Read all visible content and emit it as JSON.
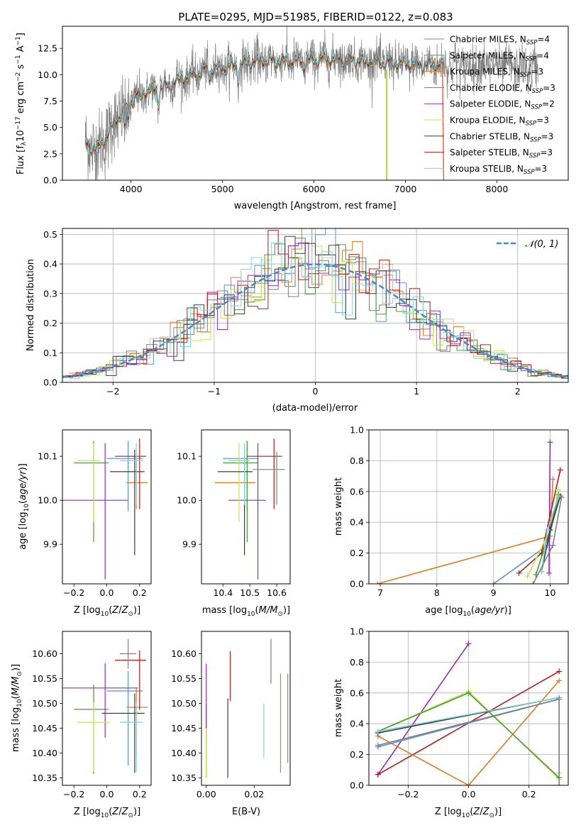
{
  "colors": {
    "Chabrier MILES": "#5b8fd9",
    "Salpeter MILES": "#7f7f7f",
    "Kroupa MILES": "#e07b22",
    "Chabrier ELODIE": "#4b9a3c",
    "Salpeter ELODIE": "#9b28b8",
    "Kroupa ELODIE": "#c9e34c",
    "Chabrier STELIB": "#3a3a3a",
    "Salpeter STELIB": "#b01c1c",
    "Kroupa STELIB": "#7fd6d6"
  },
  "chart_data": [
    {
      "id": "spectrum",
      "type": "line",
      "title": "PLATE=0295, MJD=51985, FIBERID=0122, z=0.083",
      "xlabel": "wavelength [Angstrom, rest frame]",
      "ylabel": "Flux [f",
      "ylabel_full": "Flux [f_λ10^-17 erg cm^-2 s^-1 A^-1]",
      "xlim": [
        3250,
        8780
      ],
      "ylim": [
        0,
        14.6
      ],
      "xticks": [
        4000,
        5000,
        6000,
        7000,
        8000
      ],
      "yticks": [
        0.0,
        2.5,
        5.0,
        7.5,
        10.0,
        12.5
      ],
      "legend": [
        {
          "label": "Chabrier MILES, N_SSP=4",
          "base": "Chabrier MILES, N",
          "n": "4"
        },
        {
          "label": "Salpeter MILES, N_SSP=4",
          "base": "Salpeter MILES, N",
          "n": "4"
        },
        {
          "label": "Kroupa MILES, N_SSP=3",
          "base": "Kroupa MILES, N",
          "n": "3"
        },
        {
          "label": "Chabrier ELODIE, N_SSP=3",
          "base": "Chabrier ELODIE, N",
          "n": "3"
        },
        {
          "label": "Salpeter ELODIE, N_SSP=2",
          "base": "Salpeter ELODIE, N",
          "n": "2"
        },
        {
          "label": "Kroupa ELODIE, N_SSP=3",
          "base": "Kroupa ELODIE, N",
          "n": "3"
        },
        {
          "label": "Chabrier STELIB, N_SSP=3",
          "base": "Chabrier STELIB, N",
          "n": "3"
        },
        {
          "label": "Salpeter STELIB, N_SSP=3",
          "base": "Salpeter STELIB, N",
          "n": "3"
        },
        {
          "label": "Kroupa STELIB, N_SSP=3",
          "base": "Kroupa STELIB, N",
          "n": "3"
        }
      ],
      "model_wavelength_range": [
        3500,
        7420
      ],
      "data_wavelength_range": [
        3500,
        8450
      ],
      "continuum": [
        [
          3500,
          3.3
        ],
        [
          3650,
          3.0
        ],
        [
          3800,
          5.2
        ],
        [
          3950,
          7.0
        ],
        [
          4100,
          8.3
        ],
        [
          4300,
          8.6
        ],
        [
          4500,
          9.4
        ],
        [
          4800,
          10.4
        ],
        [
          5100,
          10.8
        ],
        [
          5400,
          11.3
        ],
        [
          5800,
          11.3
        ],
        [
          6200,
          11.5
        ],
        [
          6600,
          11.3
        ],
        [
          7000,
          11.0
        ],
        [
          7400,
          10.9
        ],
        [
          7800,
          10.9
        ],
        [
          8200,
          10.7
        ],
        [
          8450,
          10.6
        ]
      ]
    },
    {
      "id": "residuals",
      "type": "histogram",
      "xlabel": "(data-model)/error",
      "ylabel": "Normed distribution",
      "xlim": [
        -2.5,
        2.5
      ],
      "ylim": [
        0,
        0.52
      ],
      "xticks": [
        -2,
        -1,
        0,
        1,
        2
      ],
      "yticks": [
        0.0,
        0.1,
        0.2,
        0.3,
        0.4,
        0.5
      ],
      "legend": "𝒩(0, 1)",
      "grid": true
    },
    {
      "id": "z-age",
      "type": "errorbar",
      "xlabel": "Z [log",
      "ylabel": "age  [log",
      "xlim": [
        -0.27,
        0.27
      ],
      "ylim": [
        9.81,
        10.16
      ],
      "xticks": [
        -0.2,
        0.0,
        0.2
      ],
      "yticks": [
        9.9,
        10.0,
        10.1
      ],
      "points": [
        {
          "model": "Chabrier MILES",
          "x": 0.13,
          "y": 10.095,
          "xerr": [
            0.13,
            0.09
          ],
          "yerr": [
            0.12,
            0.04
          ]
        },
        {
          "model": "Kroupa MILES",
          "x": 0.18,
          "y": 10.04,
          "xerr": [
            0.06,
            0.07
          ],
          "yerr": [
            0.06,
            0.05
          ]
        },
        {
          "model": "Chabrier ELODIE",
          "x": -0.08,
          "y": 10.085,
          "xerr": [
            0.12,
            0.09
          ],
          "yerr": [
            0.18,
            0.05
          ]
        },
        {
          "model": "Salpeter ELODIE",
          "x": -0.01,
          "y": 10.0,
          "xerr": [
            0.26,
            0.14
          ],
          "yerr": [
            0.18,
            0.13
          ]
        },
        {
          "model": "Kroupa ELODIE",
          "x": -0.08,
          "y": 10.09,
          "xerr": [
            0.1,
            0.04
          ],
          "yerr": [
            0.14,
            0.04
          ]
        },
        {
          "model": "Chabrier STELIB",
          "x": 0.17,
          "y": 10.065,
          "xerr": [
            0.15,
            0.06
          ],
          "yerr": [
            0.19,
            0.05
          ]
        },
        {
          "model": "Salpeter STELIB",
          "x": 0.2,
          "y": 10.1,
          "xerr": [
            0.15,
            0.04
          ],
          "yerr": [
            0.12,
            0.04
          ]
        },
        {
          "model": "Kroupa STELIB",
          "x": 0.18,
          "y": 10.09,
          "xerr": [
            0.1,
            0.04
          ],
          "yerr": [
            0.1,
            0.04
          ]
        }
      ]
    },
    {
      "id": "mass-age",
      "type": "errorbar",
      "xlabel": "mass [log",
      "xlim": [
        10.32,
        10.65
      ],
      "ylim": [
        9.81,
        10.16
      ],
      "xticks": [
        10.4,
        10.5,
        10.6
      ],
      "yticks": [
        9.9,
        10.0,
        10.1
      ],
      "points": [
        {
          "model": "Chabrier MILES",
          "x": 10.49,
          "y": 10.095,
          "xerr": [
            0.09,
            0.04
          ],
          "yerr": [
            0.12,
            0.04
          ]
        },
        {
          "model": "Kroupa MILES",
          "x": 10.48,
          "y": 10.04,
          "xerr": [
            0.11,
            0.04
          ],
          "yerr": [
            0.06,
            0.05
          ]
        },
        {
          "model": "Chabrier ELODIE",
          "x": 10.49,
          "y": 10.085,
          "xerr": [
            0.09,
            0.04
          ],
          "yerr": [
            0.18,
            0.05
          ]
        },
        {
          "model": "Salpeter ELODIE",
          "x": 10.53,
          "y": 10.0,
          "xerr": [
            0.11,
            0.03
          ],
          "yerr": [
            0.18,
            0.13
          ]
        },
        {
          "model": "Kroupa ELODIE",
          "x": 10.46,
          "y": 10.09,
          "xerr": [
            0.03,
            0.03
          ],
          "yerr": [
            0.14,
            0.04
          ]
        },
        {
          "model": "Chabrier STELIB",
          "x": 10.48,
          "y": 10.065,
          "xerr": [
            0.1,
            0.03
          ],
          "yerr": [
            0.19,
            0.05
          ]
        },
        {
          "model": "Salpeter STELIB",
          "x": 10.59,
          "y": 10.1,
          "xerr": [
            0.1,
            0.03
          ],
          "yerr": [
            0.12,
            0.04
          ]
        },
        {
          "model": "Kroupa STELIB",
          "x": 10.48,
          "y": 10.09,
          "xerr": [
            0.06,
            0.02
          ],
          "yerr": [
            0.1,
            0.04
          ]
        },
        {
          "model": "Salpeter MILES",
          "x": 10.6,
          "y": 10.07,
          "xerr": [
            0.09,
            0.03
          ],
          "yerr": [
            0.08,
            0.04
          ]
        }
      ]
    },
    {
      "id": "age-weight",
      "type": "line",
      "xlabel": "age  [log",
      "ylabel": "mass weight",
      "xlim": [
        6.8,
        10.32
      ],
      "ylim": [
        0,
        1.0
      ],
      "xticks": [
        7,
        8,
        9,
        10
      ],
      "yticks": [
        0.0,
        0.2,
        0.4,
        0.6,
        0.8,
        1.0
      ],
      "grid": true,
      "series": [
        {
          "model": "Kroupa MILES",
          "points": [
            [
              6.95,
              0.0
            ],
            [
              10.0,
              0.31
            ],
            [
              10.05,
              0.68
            ]
          ]
        },
        {
          "model": "Chabrier MILES",
          "points": [
            [
              9.0,
              0.0
            ],
            [
              9.95,
              0.25
            ],
            [
              10.15,
              0.56
            ]
          ]
        },
        {
          "model": "Salpeter ELODIE",
          "points": [
            [
              9.98,
              0.07
            ],
            [
              10.0,
              0.92
            ]
          ]
        },
        {
          "model": "Salpeter STELIB",
          "points": [
            [
              9.45,
              0.07
            ],
            [
              9.85,
              0.2
            ],
            [
              10.18,
              0.74
            ]
          ]
        },
        {
          "model": "Kroupa ELODIE",
          "points": [
            [
              9.6,
              0.05
            ],
            [
              10.0,
              0.35
            ],
            [
              10.15,
              0.61
            ]
          ]
        },
        {
          "model": "Chabrier ELODIE",
          "points": [
            [
              9.75,
              0.06
            ],
            [
              10.0,
              0.35
            ],
            [
              10.15,
              0.58
            ]
          ]
        },
        {
          "model": "Chabrier STELIB",
          "points": [
            [
              9.85,
              0.08
            ],
            [
              10.0,
              0.35
            ],
            [
              10.18,
              0.57
            ]
          ]
        },
        {
          "model": "Kroupa STELIB",
          "points": [
            [
              9.85,
              0.08
            ],
            [
              9.95,
              0.35
            ],
            [
              10.15,
              0.57
            ]
          ]
        },
        {
          "model": "Salpeter MILES",
          "points": [
            [
              9.7,
              0.0
            ],
            [
              10.05,
              0.25
            ],
            [
              10.2,
              0.56
            ]
          ]
        }
      ]
    },
    {
      "id": "z-mass",
      "type": "errorbar",
      "xlabel": "Z [log",
      "ylabel": "mass [log",
      "xlim": [
        -0.27,
        0.27
      ],
      "ylim": [
        10.335,
        10.645
      ],
      "xticks": [
        -0.2,
        0.0,
        0.2
      ],
      "yticks": [
        10.35,
        10.4,
        10.45,
        10.5,
        10.55,
        10.6
      ],
      "points": [
        {
          "model": "Chabrier MILES",
          "x": 0.13,
          "y": 10.525,
          "xerr": [
            0.13,
            0.09
          ],
          "yerr": [
            0.15,
            0.04
          ]
        },
        {
          "model": "Kroupa MILES",
          "x": 0.18,
          "y": 10.492,
          "xerr": [
            0.06,
            0.07
          ],
          "yerr": [
            0.1,
            0.04
          ]
        },
        {
          "model": "Chabrier ELODIE",
          "x": -0.08,
          "y": 10.488,
          "xerr": [
            0.12,
            0.09
          ],
          "yerr": [
            0.13,
            0.05
          ]
        },
        {
          "model": "Salpeter ELODIE",
          "x": -0.01,
          "y": 10.531,
          "xerr": [
            0.26,
            0.2
          ],
          "yerr": [
            0.1,
            0.05
          ]
        },
        {
          "model": "Kroupa ELODIE",
          "x": -0.08,
          "y": 10.462,
          "xerr": [
            0.1,
            0.1
          ],
          "yerr": [
            0.1,
            0.04
          ]
        },
        {
          "model": "Chabrier STELIB",
          "x": 0.17,
          "y": 10.48,
          "xerr": [
            0.2,
            0.06
          ],
          "yerr": [
            0.12,
            0.04
          ]
        },
        {
          "model": "Salpeter STELIB",
          "x": 0.2,
          "y": 10.587,
          "xerr": [
            0.15,
            0.04
          ],
          "yerr": [
            0.1,
            0.02
          ]
        },
        {
          "model": "Kroupa STELIB",
          "x": 0.18,
          "y": 10.462,
          "xerr": [
            0.1,
            0.04
          ],
          "yerr": [
            0.1,
            0.04
          ]
        },
        {
          "model": "Salpeter MILES",
          "x": 0.13,
          "y": 10.6,
          "xerr": [
            0.05,
            0.05
          ],
          "yerr": [
            0.03,
            0.03
          ]
        }
      ]
    },
    {
      "id": "ebv-mass",
      "type": "errorbar",
      "xlabel": "E(B-V)",
      "xlim": [
        -0.002,
        0.035
      ],
      "ylim": [
        10.335,
        10.645
      ],
      "xticks": [
        0.0,
        0.02
      ],
      "yticks": [
        10.35,
        10.4,
        10.45,
        10.5,
        10.55,
        10.6
      ],
      "points": [
        {
          "model": "Chabrier MILES",
          "x": 0.034,
          "y": 10.48,
          "yerr": [
            0.1,
            0.08
          ]
        },
        {
          "model": "Kroupa MILES",
          "x": 0.031,
          "y": 10.46,
          "yerr": [
            0.1,
            0.1
          ]
        },
        {
          "model": "Chabrier ELODIE",
          "x": 0.0,
          "y": 10.45,
          "yerr": [
            0.1,
            0.05
          ]
        },
        {
          "model": "Salpeter ELODIE",
          "x": 0.0,
          "y": 10.53,
          "yerr": [
            0.1,
            0.05
          ]
        },
        {
          "model": "Kroupa ELODIE",
          "x": 0.0,
          "y": 10.4,
          "yerr": [
            0.05,
            0.05
          ]
        },
        {
          "model": "Chabrier STELIB",
          "x": 0.009,
          "y": 10.43,
          "yerr": [
            0.08,
            0.08
          ]
        },
        {
          "model": "Salpeter STELIB",
          "x": 0.01,
          "y": 10.555,
          "yerr": [
            0.05,
            0.05
          ]
        },
        {
          "model": "Kroupa STELIB",
          "x": 0.024,
          "y": 10.45,
          "yerr": [
            0.06,
            0.05
          ]
        },
        {
          "model": "Salpeter MILES",
          "x": 0.027,
          "y": 10.58,
          "yerr": [
            0.04,
            0.05
          ]
        }
      ]
    },
    {
      "id": "z-weight",
      "type": "line",
      "xlabel": "Z [log",
      "ylabel": "mass weight",
      "xlim": [
        -0.33,
        0.33
      ],
      "ylim": [
        0,
        1.0
      ],
      "xticks": [
        -0.2,
        0.0,
        0.2
      ],
      "yticks": [
        0.0,
        0.2,
        0.4,
        0.6,
        0.8,
        1.0
      ],
      "grid": true,
      "series": [
        {
          "model": "Salpeter ELODIE",
          "points": [
            [
              -0.3,
              0.07
            ],
            [
              0.0,
              0.92
            ]
          ]
        },
        {
          "model": "Salpeter STELIB",
          "points": [
            [
              -0.3,
              0.07
            ],
            [
              0.3,
              0.74
            ]
          ]
        },
        {
          "model": "Kroupa MILES",
          "points": [
            [
              -0.3,
              0.32
            ],
            [
              0.0,
              0.0
            ],
            [
              0.3,
              0.68
            ]
          ]
        },
        {
          "model": "Kroupa ELODIE",
          "points": [
            [
              -0.3,
              0.35
            ],
            [
              0.0,
              0.61
            ],
            [
              0.3,
              0.04
            ]
          ]
        },
        {
          "model": "Chabrier ELODIE",
          "points": [
            [
              -0.3,
              0.35
            ],
            [
              0.0,
              0.6
            ],
            [
              0.3,
              0.05
            ]
          ]
        },
        {
          "model": "Chabrier STELIB",
          "points": [
            [
              -0.3,
              0.34
            ],
            [
              0.3,
              0.57
            ]
          ]
        },
        {
          "model": "Kroupa STELIB",
          "points": [
            [
              -0.3,
              0.35
            ],
            [
              0.3,
              0.57
            ],
            [
              0.3,
              0.08
            ]
          ]
        },
        {
          "model": "Chabrier MILES",
          "points": [
            [
              -0.3,
              0.25
            ],
            [
              0.3,
              0.56
            ]
          ]
        },
        {
          "model": "Salpeter MILES",
          "points": [
            [
              -0.3,
              0.26
            ],
            [
              0.3,
              0.56
            ],
            [
              0.3,
              0.0
            ]
          ]
        }
      ]
    }
  ]
}
